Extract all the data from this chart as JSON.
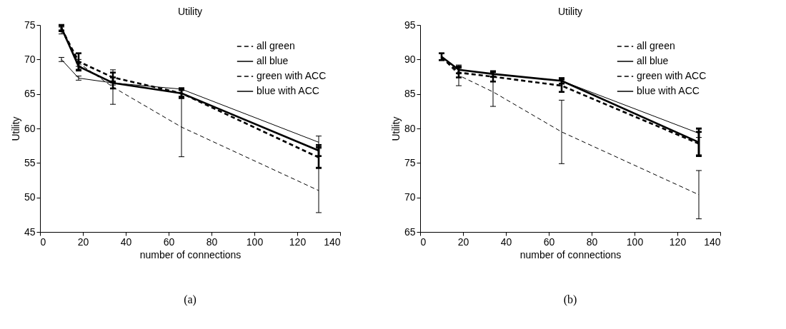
{
  "chart_data": [
    {
      "type": "line",
      "title": "Utility",
      "xlabel": "number of connections",
      "ylabel": "Utility",
      "x": [
        10,
        18,
        34,
        66,
        130
      ],
      "xlim": [
        0,
        140
      ],
      "xticks": [
        0,
        20,
        40,
        60,
        80,
        100,
        120,
        140
      ],
      "ylim": [
        45,
        75
      ],
      "yticks": [
        45,
        50,
        55,
        60,
        65,
        70,
        75
      ],
      "legend": "top right",
      "grid": false,
      "annotations": [
        "(a)"
      ],
      "series": [
        {
          "name": "all green",
          "color": "#000000",
          "line_style": "dashed",
          "values": [
            74.2,
            69.5,
            66.0,
            60.2,
            51.0
          ],
          "errors": [
            0.5,
            0.5,
            2.5,
            4.3,
            3.2
          ]
        },
        {
          "name": "all blue",
          "color": "#000000",
          "line_style": "solid",
          "values": [
            70.0,
            67.3,
            66.6,
            65.7,
            58.0
          ],
          "errors": [
            0.3,
            0.3,
            0.3,
            0.2,
            0.9
          ]
        },
        {
          "name": "green with ACC",
          "color": "#000000",
          "line_style": "dashed",
          "values": [
            74.5,
            69.7,
            67.4,
            65.1,
            55.8
          ],
          "errors": [
            0.4,
            1.2,
            0.7,
            0.5,
            1.5
          ]
        },
        {
          "name": "blue with ACC",
          "color": "#000000",
          "line_style": "solid",
          "values": [
            74.6,
            69.0,
            66.6,
            65.1,
            56.8
          ],
          "errors": [
            0.4,
            0.6,
            0.8,
            0.7,
            0.8
          ]
        }
      ]
    },
    {
      "type": "line",
      "title": "Utility",
      "xlabel": "number of connections",
      "ylabel": "Utility",
      "x": [
        10,
        18,
        34,
        66,
        130
      ],
      "xlim": [
        0,
        140
      ],
      "xticks": [
        0,
        20,
        40,
        60,
        80,
        100,
        120,
        140
      ],
      "ylim": [
        65,
        95
      ],
      "yticks": [
        65,
        70,
        75,
        80,
        85,
        90,
        95
      ],
      "legend": "top right",
      "grid": false,
      "annotations": [
        "(b)"
      ],
      "series": [
        {
          "name": "all green",
          "color": "#000000",
          "line_style": "dashed",
          "values": [
            90.3,
            87.7,
            85.3,
            79.5,
            70.4
          ],
          "errors": [
            null,
            1.5,
            2.1,
            4.6,
            3.5
          ]
        },
        {
          "name": "all blue",
          "color": "#000000",
          "line_style": "solid",
          "values": [
            90.4,
            88.5,
            87.9,
            86.9,
            79.3
          ],
          "errors": [
            null,
            null,
            null,
            null,
            0.6
          ]
        },
        {
          "name": "green with ACC",
          "color": "#000000",
          "line_style": "dashed",
          "values": [
            90.3,
            88.1,
            87.5,
            86.2,
            77.8
          ],
          "errors": [
            null,
            0.7,
            0.7,
            0.9,
            1.7
          ]
        },
        {
          "name": "blue with ACC",
          "color": "#000000",
          "line_style": "solid",
          "values": [
            90.4,
            88.5,
            87.9,
            86.9,
            78.0
          ],
          "errors": [
            0.5,
            0.5,
            0.4,
            0.4,
            2.0
          ]
        }
      ]
    }
  ]
}
